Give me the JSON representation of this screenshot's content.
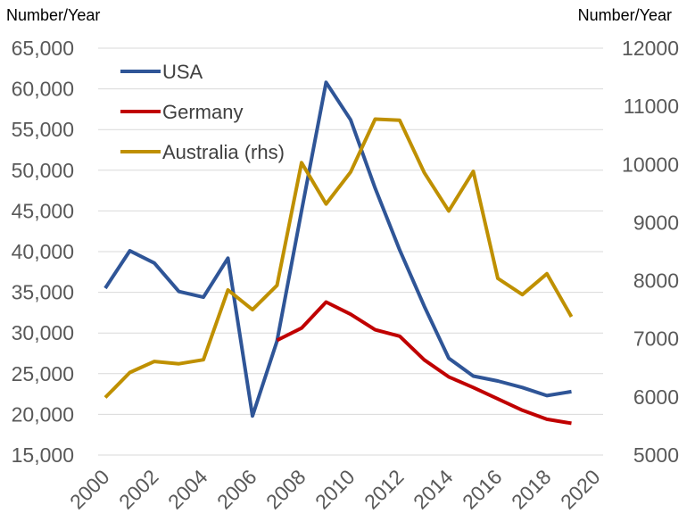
{
  "chart_data": {
    "type": "line",
    "y_left_unit": "Number/Year",
    "y_right_unit": "Number/Year",
    "x_ticks": [
      "2000",
      "2002",
      "2004",
      "2006",
      "2008",
      "2010",
      "2012",
      "2014",
      "2016",
      "2018",
      "2020"
    ],
    "x_range": [
      2000,
      2020
    ],
    "y_left_ticks": [
      "15,000",
      "20,000",
      "25,000",
      "30,000",
      "35,000",
      "40,000",
      "45,000",
      "50,000",
      "55,000",
      "60,000",
      "65,000"
    ],
    "y_left_range": [
      15000,
      65000
    ],
    "y_right_ticks": [
      "5000",
      "6000",
      "7000",
      "8000",
      "9000",
      "10000",
      "11000",
      "12000"
    ],
    "y_right_range": [
      5000,
      12000
    ],
    "grid": true,
    "legend_position": "top-left",
    "series": [
      {
        "name": "USA",
        "axis": "left",
        "color": "#2F5597",
        "x": [
          2000,
          2001,
          2002,
          2003,
          2004,
          2005,
          2006,
          2007,
          2008,
          2009,
          2010,
          2011,
          2012,
          2013,
          2014,
          2015,
          2016,
          2017,
          2018,
          2019
        ],
        "values": [
          35500,
          40100,
          38600,
          35100,
          34400,
          39200,
          19800,
          29000,
          45000,
          60800,
          56200,
          47800,
          40200,
          33300,
          26900,
          24700,
          24100,
          23300,
          22300,
          22800
        ]
      },
      {
        "name": "Germany",
        "axis": "left",
        "color": "#C00000",
        "x": [
          2007,
          2008,
          2009,
          2010,
          2011,
          2012,
          2013,
          2014,
          2015,
          2016,
          2017,
          2018,
          2019
        ],
        "values": [
          29100,
          30600,
          33800,
          32300,
          30400,
          29600,
          26700,
          24600,
          23300,
          21900,
          20500,
          19400,
          18900
        ]
      },
      {
        "name": "Australia (rhs)",
        "axis": "right",
        "color": "#BF9000",
        "x": [
          2000,
          2001,
          2002,
          2003,
          2004,
          2005,
          2006,
          2007,
          2008,
          2009,
          2010,
          2011,
          2012,
          2013,
          2014,
          2015,
          2016,
          2017,
          2018,
          2019
        ],
        "values": [
          5990,
          6420,
          6610,
          6570,
          6640,
          7840,
          7500,
          7920,
          10030,
          9320,
          9870,
          10780,
          10760,
          9860,
          9200,
          9880,
          8040,
          7760,
          8120,
          7380
        ]
      }
    ]
  }
}
